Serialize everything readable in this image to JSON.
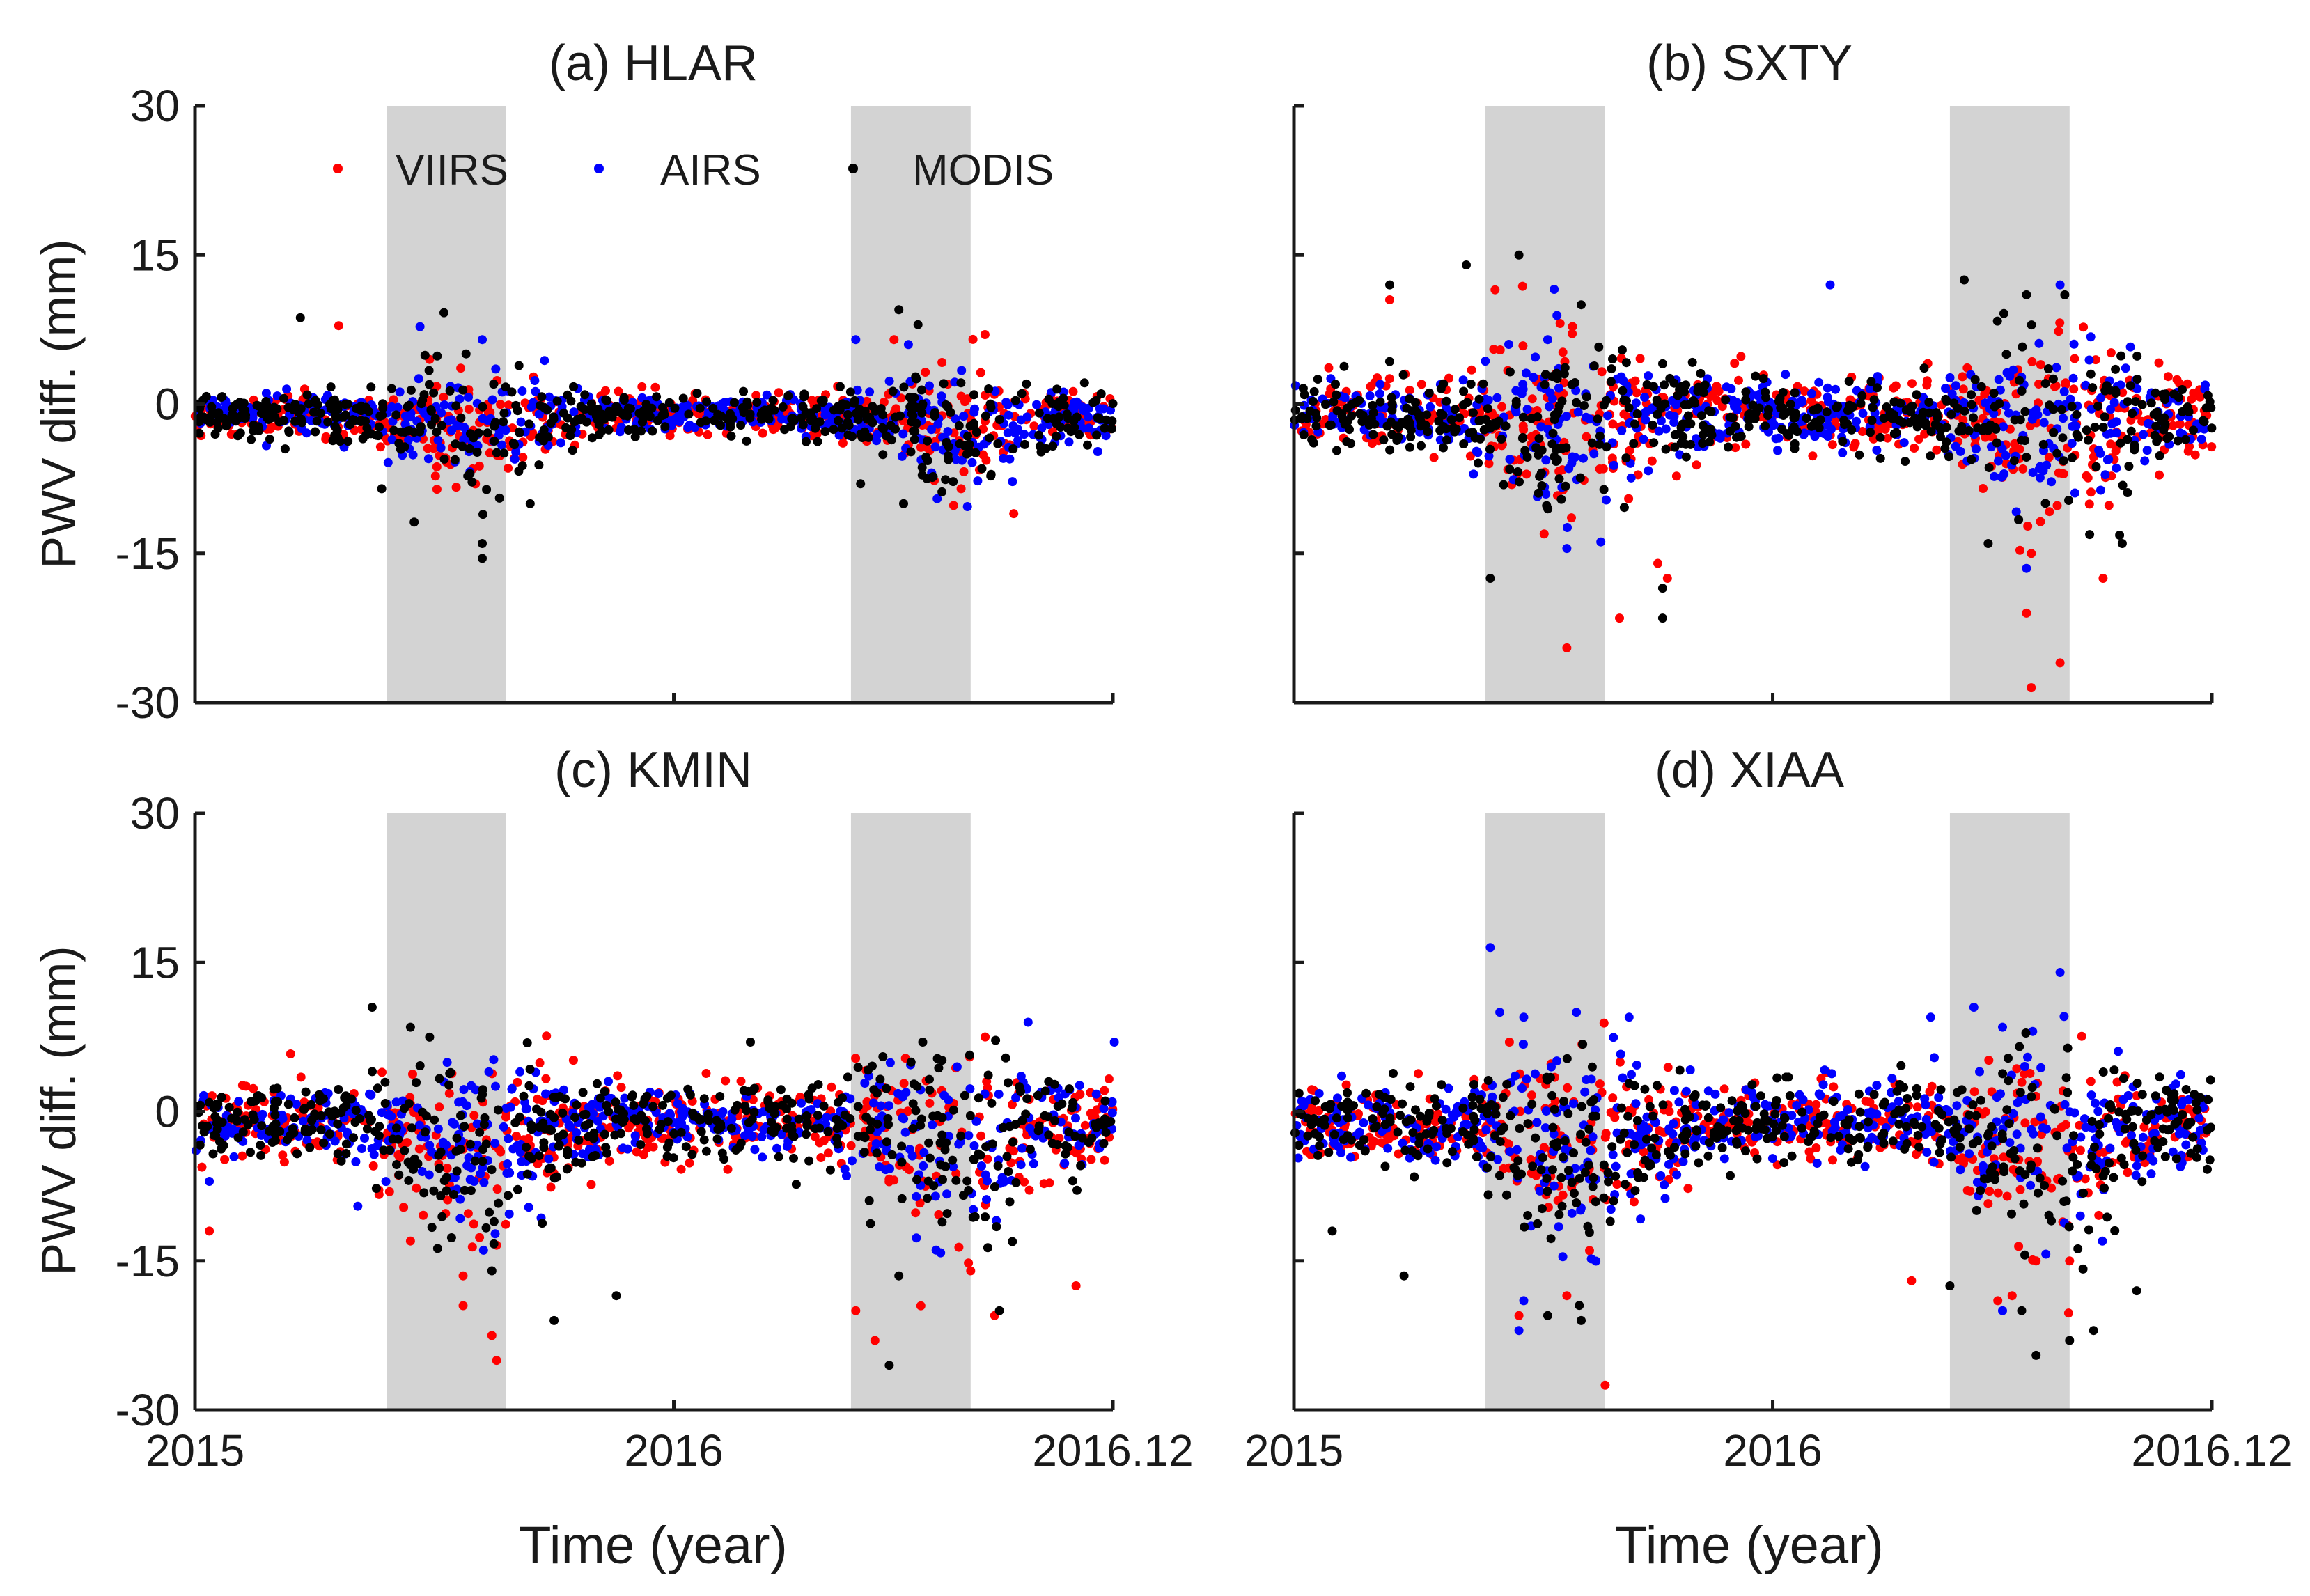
{
  "figure": {
    "ylabel": "PWV diff. (mm)",
    "xlabel": "Time (year)"
  },
  "legend": [
    {
      "name": "VIIRS",
      "color": "#ff0000"
    },
    {
      "name": "AIRS",
      "color": "#0000ff"
    },
    {
      "name": "MODIS",
      "color": "#000000"
    }
  ],
  "chart_data": [
    {
      "type": "scatter",
      "title": "(a) HLAR",
      "xlabel": "Time (year)",
      "ylabel": "PWV diff. (mm)",
      "xlim": [
        2015.0,
        2016.917
      ],
      "ylim": [
        -30,
        30
      ],
      "yticks": [
        30,
        15,
        0,
        -15,
        -30
      ],
      "xtick_labels": [
        "2015",
        "2016",
        "2016.12"
      ],
      "shaded_periods": [
        [
          2015.4,
          2015.65
        ],
        [
          2016.37,
          2016.62
        ]
      ],
      "series": [
        {
          "name": "VIIRS",
          "color": "#ff0000",
          "spread": 1.7,
          "extremes": [
            [
              2015.3,
              7.9
            ],
            [
              2015.49,
              4.5
            ],
            [
              2015.58,
              -6.5
            ],
            [
              2016.46,
              6.5
            ],
            [
              2016.56,
              4.2
            ],
            [
              2016.6,
              -8.5
            ],
            [
              2016.65,
              7.0
            ],
            [
              2016.71,
              -11.0
            ]
          ]
        },
        {
          "name": "AIRS",
          "color": "#0000ff",
          "spread": 1.6,
          "extremes": [
            [
              2015.47,
              7.8
            ],
            [
              2015.6,
              6.5
            ],
            [
              2015.73,
              4.4
            ],
            [
              2016.38,
              6.5
            ],
            [
              2016.55,
              -9.5
            ],
            [
              2016.49,
              6.0
            ]
          ]
        },
        {
          "name": "MODIS",
          "color": "#000000",
          "spread": 2.0,
          "extremes": [
            [
              2015.22,
              8.7
            ],
            [
              2015.52,
              9.2
            ],
            [
              2015.6,
              -15.5
            ],
            [
              2015.6,
              -14.0
            ],
            [
              2015.39,
              -8.5
            ],
            [
              2015.7,
              -10.0
            ],
            [
              2016.47,
              9.5
            ],
            [
              2016.51,
              8.0
            ],
            [
              2016.39,
              -8.0
            ],
            [
              2016.48,
              -10.0
            ]
          ]
        }
      ]
    },
    {
      "type": "scatter",
      "title": "(b) SXTY",
      "xlabel": "Time (year)",
      "ylabel": "",
      "xlim": [
        2015.0,
        2016.917
      ],
      "ylim": [
        -30,
        30
      ],
      "yticks": [
        30,
        15,
        0,
        -15,
        -30
      ],
      "xtick_labels": [
        "2015",
        "2016",
        "2016.12"
      ],
      "shaded_periods": [
        [
          2015.4,
          2015.65
        ],
        [
          2016.37,
          2016.62
        ]
      ],
      "series": [
        {
          "name": "VIIRS",
          "color": "#ff0000",
          "spread": 3.0,
          "extremes": [
            [
              2015.2,
              10.5
            ],
            [
              2015.42,
              11.5
            ],
            [
              2015.57,
              -24.5
            ],
            [
              2015.68,
              -21.5
            ],
            [
              2015.78,
              -17.5
            ],
            [
              2015.76,
              -16.0
            ],
            [
              2016.53,
              -21.0
            ],
            [
              2016.54,
              -28.5
            ],
            [
              2016.6,
              -26.0
            ],
            [
              2016.69,
              -17.5
            ],
            [
              2016.54,
              -15.0
            ]
          ]
        },
        {
          "name": "AIRS",
          "color": "#0000ff",
          "spread": 2.8,
          "extremes": [
            [
              2016.12,
              12.0
            ],
            [
              2016.6,
              12.0
            ],
            [
              2015.57,
              -14.5
            ],
            [
              2016.53,
              -16.5
            ],
            [
              2015.53,
              6.5
            ]
          ]
        },
        {
          "name": "MODIS",
          "color": "#000000",
          "spread": 3.3,
          "extremes": [
            [
              2015.2,
              12.0
            ],
            [
              2015.36,
              14.0
            ],
            [
              2015.47,
              15.0
            ],
            [
              2015.6,
              10.0
            ],
            [
              2016.4,
              12.5
            ],
            [
              2016.53,
              11.0
            ],
            [
              2016.61,
              11.0
            ],
            [
              2015.41,
              -17.5
            ],
            [
              2015.77,
              -21.5
            ],
            [
              2015.77,
              -18.5
            ],
            [
              2016.73,
              -14.0
            ],
            [
              2016.45,
              -14.0
            ]
          ]
        }
      ]
    },
    {
      "type": "scatter",
      "title": "(c) KMIN",
      "xlabel": "Time (year)",
      "ylabel": "PWV diff. (mm)",
      "xlim": [
        2015.0,
        2016.917
      ],
      "ylim": [
        -30,
        30
      ],
      "yticks": [
        30,
        15,
        0,
        -15,
        -30
      ],
      "xtick_labels": [
        "2015",
        "2016",
        "2016.12"
      ],
      "shaded_periods": [
        [
          2015.4,
          2015.65
        ],
        [
          2016.37,
          2016.62
        ]
      ],
      "series": [
        {
          "name": "VIIRS",
          "color": "#ff0000",
          "spread": 3.2,
          "extremes": [
            [
              2015.56,
              -19.5
            ],
            [
              2015.56,
              -16.5
            ],
            [
              2015.62,
              -22.5
            ],
            [
              2015.63,
              -25.0
            ],
            [
              2015.45,
              -13.0
            ],
            [
              2016.38,
              -20.0
            ],
            [
              2016.42,
              -23.0
            ],
            [
              2016.62,
              -16.0
            ],
            [
              2016.67,
              -20.5
            ],
            [
              2016.84,
              -17.5
            ],
            [
              2015.03,
              -12.0
            ]
          ]
        },
        {
          "name": "AIRS",
          "color": "#0000ff",
          "spread": 2.6,
          "extremes": [
            [
              2016.74,
              9.0
            ],
            [
              2016.92,
              7.0
            ],
            [
              2015.03,
              -7.0
            ],
            [
              2015.34,
              -9.5
            ]
          ]
        },
        {
          "name": "MODIS",
          "color": "#000000",
          "spread": 3.4,
          "extremes": [
            [
              2015.37,
              10.5
            ],
            [
              2015.45,
              8.5
            ],
            [
              2015.49,
              7.5
            ],
            [
              2015.75,
              -21.0
            ],
            [
              2015.88,
              -18.5
            ],
            [
              2016.45,
              -25.5
            ],
            [
              2016.47,
              -16.5
            ],
            [
              2015.62,
              -16.0
            ],
            [
              2016.68,
              -20.0
            ],
            [
              2016.16,
              7.0
            ],
            [
              2016.52,
              7.0
            ]
          ]
        }
      ]
    },
    {
      "type": "scatter",
      "title": "(d) XIAA",
      "xlabel": "Time (year)",
      "ylabel": "",
      "xlim": [
        2015.0,
        2016.917
      ],
      "ylim": [
        -30,
        30
      ],
      "yticks": [
        30,
        15,
        0,
        -15,
        -30
      ],
      "xtick_labels": [
        "2015",
        "2016",
        "2016.12"
      ],
      "shaded_periods": [
        [
          2015.4,
          2015.65
        ],
        [
          2016.37,
          2016.62
        ]
      ],
      "series": [
        {
          "name": "VIIRS",
          "color": "#ff0000",
          "spread": 3.0,
          "extremes": [
            [
              2015.45,
              7.0
            ],
            [
              2015.47,
              -20.5
            ],
            [
              2015.57,
              -18.5
            ],
            [
              2015.65,
              -27.5
            ],
            [
              2016.29,
              -17.0
            ],
            [
              2016.47,
              -19.0
            ],
            [
              2016.5,
              -18.5
            ],
            [
              2016.55,
              -15.0
            ],
            [
              2016.62,
              -15.0
            ]
          ]
        },
        {
          "name": "AIRS",
          "color": "#0000ff",
          "spread": 3.2,
          "extremes": [
            [
              2015.41,
              16.5
            ],
            [
              2015.43,
              10.0
            ],
            [
              2015.48,
              9.5
            ],
            [
              2015.59,
              10.0
            ],
            [
              2015.7,
              9.5
            ],
            [
              2016.33,
              9.5
            ],
            [
              2016.42,
              10.5
            ],
            [
              2016.48,
              8.5
            ],
            [
              2016.6,
              14.0
            ],
            [
              2015.47,
              -22.0
            ],
            [
              2015.48,
              -19.0
            ],
            [
              2016.48,
              -20.0
            ]
          ]
        },
        {
          "name": "MODIS",
          "color": "#000000",
          "spread": 3.4,
          "extremes": [
            [
              2015.53,
              -20.5
            ],
            [
              2015.6,
              -21.0
            ],
            [
              2016.55,
              -24.5
            ],
            [
              2016.62,
              -23.0
            ],
            [
              2016.52,
              -20.0
            ],
            [
              2016.67,
              -22.0
            ],
            [
              2015.23,
              -16.5
            ],
            [
              2016.37,
              -17.5
            ],
            [
              2016.76,
              -18.0
            ],
            [
              2015.08,
              -12.0
            ]
          ]
        }
      ]
    }
  ]
}
